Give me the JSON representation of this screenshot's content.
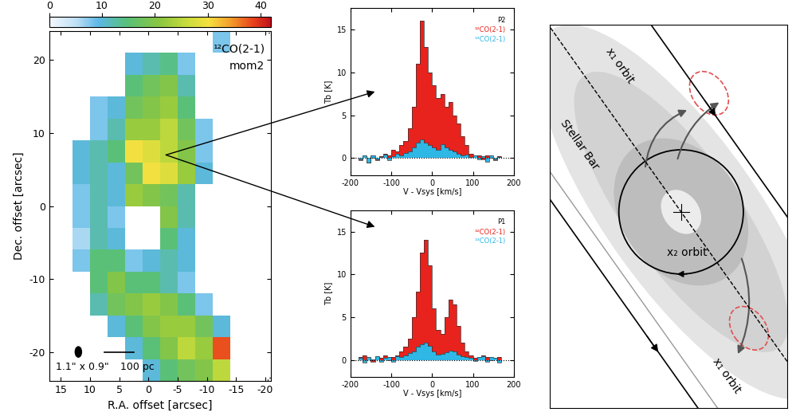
{
  "chart_data": [
    {
      "type": "heatmap",
      "title": "¹²CO(2-1)",
      "subtitle": "mom2",
      "x_label": "R.A. offset [arcsec]",
      "y_label": "Dec. offset [arcsec]",
      "xlim": [
        17,
        -21
      ],
      "ylim": [
        -24,
        24
      ],
      "xticks": [
        15,
        10,
        5,
        0,
        -5,
        -10,
        -15,
        -20
      ],
      "yticks": [
        -20,
        -10,
        0,
        10,
        20
      ],
      "x_edges": [
        16,
        13,
        10,
        7,
        4,
        1,
        -2,
        -5,
        -8,
        -11,
        -14,
        -17,
        -20
      ],
      "y_edges": [
        24,
        21,
        18,
        15,
        12,
        9,
        6,
        3,
        0,
        -3,
        -6,
        -9,
        -12,
        -15,
        -18,
        -21,
        -24
      ],
      "cells": [
        [
          null,
          null,
          null,
          null,
          null,
          null,
          null,
          null,
          null,
          8,
          null,
          null
        ],
        [
          null,
          null,
          null,
          null,
          10,
          12,
          14,
          8,
          null,
          null,
          null,
          null
        ],
        [
          null,
          null,
          null,
          null,
          15,
          18,
          20,
          12,
          null,
          null,
          null,
          null
        ],
        [
          null,
          null,
          8,
          10,
          18,
          20,
          22,
          15,
          null,
          null,
          null,
          null
        ],
        [
          null,
          null,
          8,
          12,
          22,
          22,
          25,
          18,
          8,
          null,
          null,
          null
        ],
        [
          null,
          10,
          12,
          15,
          30,
          28,
          25,
          20,
          8,
          null,
          null,
          null
        ],
        [
          null,
          10,
          12,
          10,
          18,
          30,
          28,
          22,
          10,
          null,
          null,
          null
        ],
        [
          null,
          8,
          12,
          10,
          22,
          20,
          18,
          12,
          null,
          null,
          null,
          null
        ],
        [
          null,
          8,
          12,
          8,
          null,
          null,
          20,
          12,
          null,
          null,
          null,
          null
        ],
        [
          null,
          6,
          12,
          10,
          null,
          null,
          15,
          10,
          null,
          null,
          null,
          null
        ],
        [
          null,
          8,
          15,
          15,
          8,
          10,
          12,
          10,
          null,
          null,
          null,
          null
        ],
        [
          null,
          null,
          15,
          20,
          15,
          15,
          12,
          8,
          null,
          null,
          null,
          null
        ],
        [
          null,
          null,
          12,
          18,
          20,
          22,
          20,
          15,
          8,
          null,
          null,
          null
        ],
        [
          null,
          null,
          null,
          10,
          15,
          20,
          22,
          22,
          18,
          10,
          null,
          null
        ],
        [
          null,
          null,
          null,
          null,
          10,
          15,
          20,
          25,
          22,
          38,
          null,
          null
        ],
        [
          null,
          null,
          null,
          null,
          null,
          10,
          15,
          18,
          20,
          25,
          null,
          null
        ]
      ],
      "colorbar": {
        "range": [
          0,
          42
        ],
        "ticks": [
          0,
          10,
          20,
          30,
          40
        ]
      },
      "beam": "1.1\" x 0.9\"",
      "scale_bar": "100 pc"
    },
    {
      "type": "histogram",
      "title": "P2",
      "x_label": "V - Vsys [km/s]",
      "y_label": "Tb [K]",
      "xlim": [
        -200,
        200
      ],
      "xticks": [
        -200,
        -100,
        0,
        100,
        200
      ],
      "ylim": [
        -2,
        17.5
      ],
      "yticks": [
        0,
        5,
        10,
        15
      ],
      "bins": [
        -180,
        -170,
        -160,
        -150,
        -140,
        -130,
        -120,
        -110,
        -100,
        -90,
        -80,
        -70,
        -60,
        -50,
        -40,
        -30,
        -20,
        -10,
        0,
        10,
        20,
        30,
        40,
        50,
        60,
        70,
        80,
        90,
        100,
        110,
        120,
        130,
        140,
        150,
        160,
        170
      ],
      "series": [
        {
          "name": "¹²CO(2-1)",
          "color": "#e8221c",
          "values": [
            -0.3,
            0.2,
            -0.5,
            0,
            -0.3,
            0.2,
            0.5,
            0.3,
            1,
            0.8,
            1.5,
            2,
            3.5,
            6,
            11,
            16,
            13,
            10,
            8.5,
            7,
            7.5,
            6,
            6.5,
            5,
            4,
            2.5,
            1.5,
            0.5,
            0.2,
            0.3,
            -0.2,
            0.3,
            0,
            -0.3,
            0.2
          ]
        },
        {
          "name": "¹³CO(2-1)",
          "color": "#2fb7e6",
          "values": [
            -0.2,
            0.3,
            -0.5,
            0.3,
            -0.2,
            0.1,
            0.4,
            -0.3,
            0.2,
            0.5,
            0.3,
            0.6,
            0.8,
            1.2,
            1.8,
            2.2,
            1.8,
            1.5,
            1.2,
            1.0,
            1.6,
            1.2,
            1.0,
            0.8,
            0.5,
            0.3,
            0.4,
            0.1,
            0.3,
            -0.2,
            0.2,
            -0.4,
            0.3,
            -0.2,
            0.1
          ]
        }
      ]
    },
    {
      "type": "histogram",
      "title": "P1",
      "x_label": "V - Vsys [km/s]",
      "y_label": "Tb [K]",
      "xlim": [
        -200,
        200
      ],
      "xticks": [
        -200,
        -100,
        0,
        100,
        200
      ],
      "ylim": [
        -2,
        17.5
      ],
      "yticks": [
        0,
        5,
        10,
        15
      ],
      "bins": [
        -180,
        -170,
        -160,
        -150,
        -140,
        -130,
        -120,
        -110,
        -100,
        -90,
        -80,
        -70,
        -60,
        -50,
        -40,
        -30,
        -20,
        -10,
        0,
        10,
        20,
        30,
        40,
        50,
        60,
        70,
        80,
        90,
        100,
        110,
        120,
        130,
        140,
        150,
        160,
        170
      ],
      "series": [
        {
          "name": "¹²CO(2-1)",
          "color": "#e8221c",
          "values": [
            0.3,
            0.5,
            0.2,
            -0.2,
            0.3,
            0.2,
            0.5,
            0,
            0.3,
            0.5,
            1,
            1.5,
            2.5,
            5,
            8,
            12.5,
            14,
            11,
            6,
            3.5,
            3,
            5,
            7,
            6.5,
            4,
            2,
            1,
            0.5,
            0.2,
            0.3,
            0.5,
            0.3,
            0,
            0.2,
            0.3
          ]
        },
        {
          "name": "¹³CO(2-1)",
          "color": "#2fb7e6",
          "values": [
            0.2,
            -0.3,
            0.3,
            0.1,
            0.4,
            -0.2,
            0.2,
            0.3,
            -0.2,
            0.4,
            0.3,
            0.5,
            0.8,
            1,
            1.5,
            1.8,
            2,
            1.6,
            1,
            0.6,
            0.7,
            0.9,
            1.1,
            1,
            0.6,
            0.4,
            0.3,
            0.2,
            -0.1,
            0.3,
            0.4,
            -0.2,
            0.3,
            0.2,
            -0.3
          ]
        }
      ]
    }
  ],
  "diagram": {
    "labels": {
      "x1_top": "x₁ orbit",
      "bar": "Stellar Bar",
      "x2": "x₂ orbit",
      "x1_bottom": "x₁ orbit"
    }
  }
}
